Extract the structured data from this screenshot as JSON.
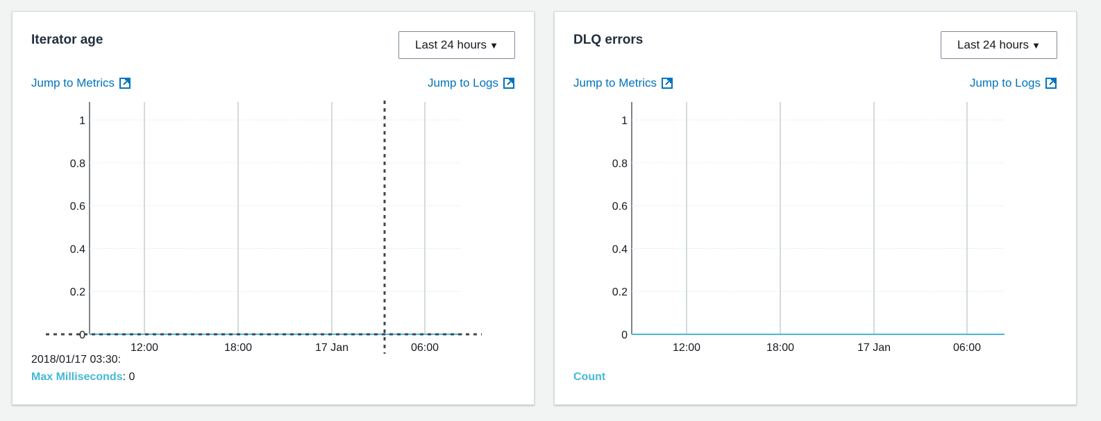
{
  "panels": {
    "iterator": {
      "title": "Iterator age",
      "time_range": "Last 24 hours",
      "jump_metrics": "Jump to Metrics",
      "jump_logs": "Jump to Logs",
      "hover_timestamp": "2018/01/17 03:30:",
      "series_label": "Max Milliseconds",
      "series_sep": ":",
      "series_value": "0"
    },
    "dlq": {
      "title": "DLQ errors",
      "time_range": "Last 24 hours",
      "jump_metrics": "Jump to Metrics",
      "jump_logs": "Jump to Logs",
      "legend_label": "Count"
    }
  },
  "colors": {
    "link": "#0073bb",
    "series": "#44b9d6",
    "crosshair": "#414750"
  },
  "icons": {
    "dropdown": "caret-down-icon",
    "external": "external-link-icon"
  },
  "chart_data": [
    {
      "type": "line",
      "title": "Iterator age",
      "x": [
        "12:00",
        "18:00",
        "17 Jan",
        "06:00"
      ],
      "yticks": [
        "0",
        "0.2",
        "0.4",
        "0.6",
        "0.8",
        "1"
      ],
      "ylim": [
        0,
        1
      ],
      "series": [
        {
          "name": "Max Milliseconds",
          "values": [
            0,
            0,
            0,
            0
          ]
        }
      ],
      "crosshair_time": "2018/01/17 03:30",
      "grid": true
    },
    {
      "type": "line",
      "title": "DLQ errors",
      "x": [
        "12:00",
        "18:00",
        "17 Jan",
        "06:00"
      ],
      "yticks": [
        "0",
        "0.2",
        "0.4",
        "0.6",
        "0.8",
        "1"
      ],
      "ylim": [
        0,
        1
      ],
      "series": [
        {
          "name": "Count",
          "values": [
            0,
            0,
            0,
            0
          ]
        }
      ],
      "grid": true
    }
  ]
}
